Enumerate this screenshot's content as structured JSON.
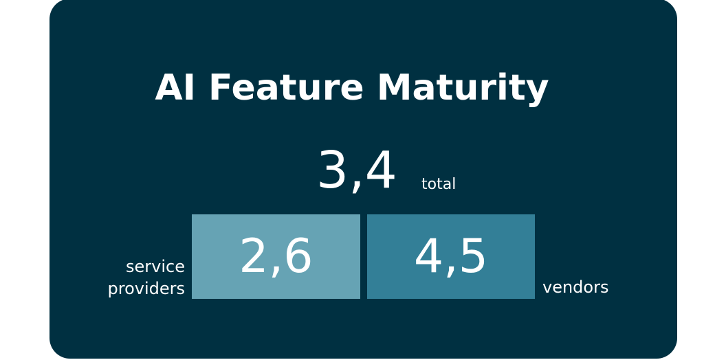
{
  "title": "AI Feature Maturity",
  "total": {
    "value": "3,4",
    "label": "total"
  },
  "segments": [
    {
      "label_line1": "service",
      "label_line2": "providers",
      "value": "2,6",
      "color": "#66a3b4"
    },
    {
      "label": "vendors",
      "value": "4,5",
      "color": "#337f97"
    }
  ],
  "colors": {
    "background": "#003041",
    "text": "#ffffff"
  }
}
